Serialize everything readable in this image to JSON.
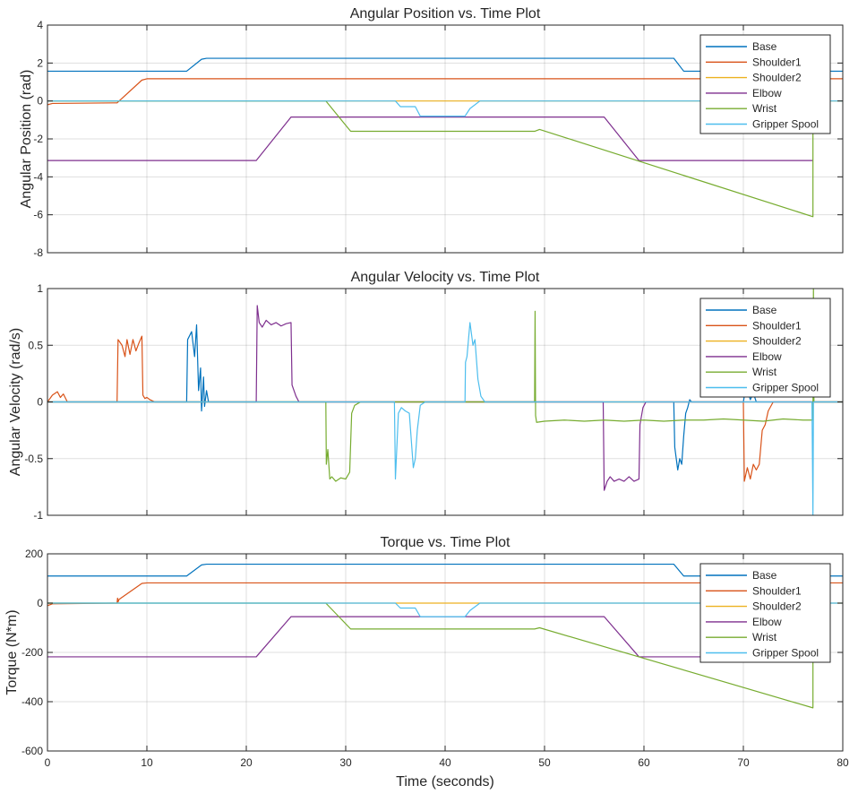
{
  "figure": {
    "xlabel": "Time (seconds)"
  },
  "chart_data": [
    {
      "type": "line",
      "title": "Angular Position vs. Time Plot",
      "xlabel": "",
      "ylabel": "Angular Position (rad)",
      "xlim": [
        0,
        80
      ],
      "ylim": [
        -8,
        4
      ],
      "xticks": [
        0,
        10,
        20,
        30,
        40,
        50,
        60,
        70,
        80
      ],
      "yticks": [
        -8,
        -6,
        -4,
        -2,
        0,
        2,
        4
      ],
      "show_xticklabels": false,
      "grid": true,
      "legend_position": "top-right",
      "series": [
        {
          "name": "Base",
          "color": "#0072BD",
          "x": [
            0,
            14,
            15.5,
            16,
            63,
            64,
            77.5,
            80
          ],
          "y": [
            1.57,
            1.57,
            2.2,
            2.25,
            2.25,
            1.57,
            1.57,
            1.57
          ]
        },
        {
          "name": "Shoulder1",
          "color": "#D95319",
          "x": [
            0,
            0.5,
            7,
            9.5,
            10,
            80
          ],
          "y": [
            -0.2,
            -0.13,
            -0.1,
            1.1,
            1.17,
            1.17
          ]
        },
        {
          "name": "Shoulder2",
          "color": "#EDB120",
          "x": [
            0,
            80
          ],
          "y": [
            0,
            0
          ]
        },
        {
          "name": "Elbow",
          "color": "#7E2F8E",
          "x": [
            0,
            21,
            24.5,
            56,
            59.5,
            77
          ],
          "y": [
            -3.14,
            -3.14,
            -0.85,
            -0.85,
            -3.14,
            -3.14
          ]
        },
        {
          "name": "Wrist",
          "color": "#77AC30",
          "x": [
            0,
            28,
            30.5,
            49,
            49.5,
            77,
            77,
            77.1
          ],
          "y": [
            0,
            0,
            -1.6,
            -1.6,
            -1.5,
            -6.1,
            0,
            0
          ]
        },
        {
          "name": "Gripper Spool",
          "color": "#4DBEEE",
          "x": [
            0,
            35,
            35.5,
            37,
            37.5,
            42,
            42.5,
            43.5,
            80
          ],
          "y": [
            0,
            0,
            -0.3,
            -0.3,
            -0.8,
            -0.8,
            -0.4,
            0,
            0
          ]
        }
      ]
    },
    {
      "type": "line",
      "title": "Angular Velocity vs. Time Plot",
      "xlabel": "",
      "ylabel": "Angular Velocity (rad/s)",
      "xlim": [
        0,
        80
      ],
      "ylim": [
        -1,
        1
      ],
      "xticks": [
        0,
        10,
        20,
        30,
        40,
        50,
        60,
        70,
        80
      ],
      "yticks": [
        -1,
        -0.5,
        0,
        0.5,
        1
      ],
      "show_xticklabels": false,
      "grid": true,
      "legend_position": "top-right",
      "series": [
        {
          "name": "Base",
          "color": "#0072BD",
          "x": [
            0,
            14,
            14.1,
            14.5,
            14.8,
            15,
            15.2,
            15.4,
            15.5,
            15.7,
            15.8,
            16,
            16.2,
            63,
            63.1,
            63.4,
            63.6,
            63.8,
            64,
            64.2,
            64.4,
            64.6,
            64.8,
            70,
            70.1,
            70.4,
            70.7,
            71,
            71.3,
            80
          ],
          "y": [
            0,
            0,
            0.55,
            0.62,
            0.4,
            0.68,
            0.1,
            0.3,
            -0.08,
            0.22,
            -0.04,
            0.1,
            0,
            0,
            -0.4,
            -0.6,
            -0.5,
            -0.55,
            -0.3,
            -0.1,
            -0.05,
            0.02,
            0,
            0,
            0.05,
            0.1,
            0.02,
            0.08,
            0,
            0
          ]
        },
        {
          "name": "Shoulder1",
          "color": "#D95319",
          "x": [
            0,
            0.5,
            1,
            1.3,
            1.6,
            2,
            7,
            7.1,
            7.5,
            7.8,
            8,
            8.3,
            8.6,
            8.9,
            9.2,
            9.5,
            9.6,
            9.8,
            10,
            10.3,
            10.8,
            70,
            70.1,
            70.4,
            70.7,
            71,
            71.3,
            71.6,
            71.9,
            72.2,
            72.5,
            73,
            80
          ],
          "y": [
            0,
            0.06,
            0.09,
            0.04,
            0.07,
            0,
            0,
            0.55,
            0.5,
            0.4,
            0.55,
            0.42,
            0.55,
            0.45,
            0.52,
            0.58,
            0.06,
            0.03,
            0.04,
            0.02,
            0,
            0,
            -0.7,
            -0.58,
            -0.68,
            -0.55,
            -0.6,
            -0.55,
            -0.25,
            -0.2,
            -0.08,
            0,
            0
          ]
        },
        {
          "name": "Shoulder2",
          "color": "#EDB120",
          "x": [
            0,
            80
          ],
          "y": [
            0,
            0
          ]
        },
        {
          "name": "Elbow",
          "color": "#7E2F8E",
          "x": [
            0,
            21,
            21.1,
            21.3,
            21.6,
            22,
            22.5,
            23,
            23.5,
            24,
            24.5,
            24.6,
            25,
            25.3,
            55.9,
            56,
            56.3,
            56.6,
            57,
            57.5,
            58,
            58.5,
            59,
            59.5,
            59.6,
            59.9,
            60.2,
            80
          ],
          "y": [
            0,
            0,
            0.85,
            0.7,
            0.66,
            0.72,
            0.68,
            0.7,
            0.67,
            0.69,
            0.7,
            0.15,
            0.05,
            0,
            0,
            -0.78,
            -0.7,
            -0.66,
            -0.7,
            -0.68,
            -0.7,
            -0.66,
            -0.7,
            -0.68,
            -0.2,
            -0.05,
            0,
            0
          ]
        },
        {
          "name": "Wrist",
          "color": "#77AC30",
          "x": [
            0,
            28,
            28.05,
            28.2,
            28.4,
            28.6,
            29,
            29.5,
            30,
            30.4,
            30.6,
            30.9,
            31.5,
            49,
            49.05,
            49.1,
            49.2,
            50,
            52,
            54,
            56,
            58,
            60,
            62,
            64,
            66,
            68,
            70,
            72,
            74,
            76,
            77,
            77.05,
            77.1,
            80
          ],
          "y": [
            0,
            0,
            -0.55,
            -0.42,
            -0.68,
            -0.66,
            -0.7,
            -0.67,
            -0.68,
            -0.62,
            -0.1,
            -0.03,
            0,
            0,
            0.8,
            -0.12,
            -0.18,
            -0.17,
            -0.16,
            -0.17,
            -0.16,
            -0.17,
            -0.16,
            -0.17,
            -0.16,
            -0.16,
            -0.15,
            -0.16,
            -0.17,
            -0.15,
            -0.16,
            -0.16,
            1.0,
            0,
            0
          ]
        },
        {
          "name": "Gripper Spool",
          "color": "#4DBEEE",
          "x": [
            0,
            34.9,
            35,
            35.3,
            35.6,
            36,
            36.4,
            36.8,
            37,
            37.2,
            37.5,
            38,
            42,
            42.05,
            42.2,
            42.5,
            42.8,
            43,
            43.3,
            43.6,
            44,
            76.9,
            77,
            77.05,
            77.1,
            80
          ],
          "y": [
            0,
            0,
            -0.68,
            -0.1,
            -0.05,
            -0.08,
            -0.1,
            -0.58,
            -0.5,
            -0.25,
            -0.03,
            0,
            0,
            0.35,
            0.4,
            0.7,
            0.5,
            0.55,
            0.2,
            0.05,
            0,
            0,
            -1.0,
            0,
            0,
            0
          ]
        }
      ]
    },
    {
      "type": "line",
      "title": "Torque vs. Time Plot",
      "xlabel": "Time (seconds)",
      "ylabel": "Torque (N*m)",
      "xlim": [
        0,
        80
      ],
      "ylim": [
        -600,
        200
      ],
      "xticks": [
        0,
        10,
        20,
        30,
        40,
        50,
        60,
        70,
        80
      ],
      "yticks": [
        -600,
        -400,
        -200,
        0,
        200
      ],
      "show_xticklabels": true,
      "grid": true,
      "legend_position": "top-right",
      "series": [
        {
          "name": "Base",
          "color": "#0072BD",
          "x": [
            0,
            14,
            15.5,
            16,
            63,
            64,
            77.5,
            80
          ],
          "y": [
            110,
            110,
            155,
            158,
            158,
            110,
            110,
            110
          ]
        },
        {
          "name": "Shoulder1",
          "color": "#D95319",
          "x": [
            0,
            0.5,
            7,
            7.05,
            7.1,
            7.2,
            9.5,
            10,
            80
          ],
          "y": [
            -10,
            -3,
            0,
            20,
            5,
            15,
            80,
            82,
            82
          ]
        },
        {
          "name": "Shoulder2",
          "color": "#EDB120",
          "x": [
            0,
            80
          ],
          "y": [
            0,
            0
          ]
        },
        {
          "name": "Elbow",
          "color": "#7E2F8E",
          "x": [
            0,
            21,
            24.5,
            56,
            59.5,
            77
          ],
          "y": [
            -218,
            -218,
            -55,
            -55,
            -218,
            -218
          ]
        },
        {
          "name": "Wrist",
          "color": "#77AC30",
          "x": [
            0,
            28,
            30.5,
            49,
            49.5,
            77,
            77,
            77.1
          ],
          "y": [
            0,
            0,
            -105,
            -105,
            -100,
            -425,
            0,
            0
          ]
        },
        {
          "name": "Gripper Spool",
          "color": "#4DBEEE",
          "x": [
            0,
            35,
            35.5,
            37,
            37.5,
            42,
            42.5,
            43.5,
            80
          ],
          "y": [
            0,
            0,
            -20,
            -20,
            -55,
            -55,
            -30,
            0,
            0
          ]
        }
      ]
    }
  ]
}
